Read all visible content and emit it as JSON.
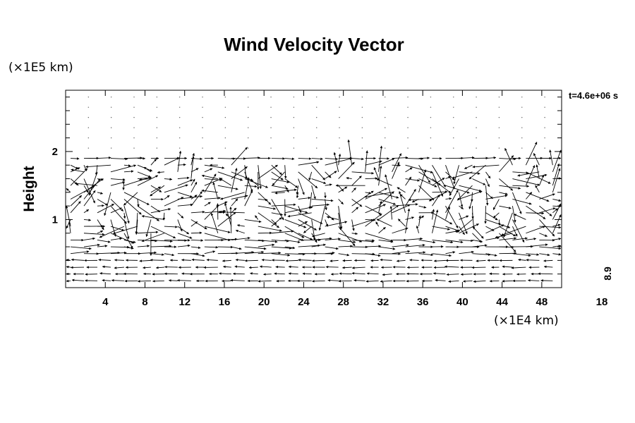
{
  "chart_data": {
    "type": "vector_field",
    "title": "Wind Velocity Vector",
    "ylabel": "Height",
    "y_unit": "(×1E5 km)",
    "x_unit": "(×1E4 km)",
    "time_label": "t=4.6e+06 s",
    "xlim": [
      0,
      50
    ],
    "ylim": [
      0,
      2.9
    ],
    "x_ticks": [
      4,
      8,
      12,
      16,
      20,
      24,
      28,
      32,
      36,
      40,
      44,
      48
    ],
    "y_ticks": [
      1,
      2
    ],
    "reference_vector_label": "18",
    "colorbar_label": "8.9",
    "vector_rows_y": [
      0.1,
      0.3,
      0.5,
      0.7,
      0.9,
      1.1,
      1.3,
      1.5,
      1.7,
      1.9,
      2.1,
      2.3,
      2.5,
      2.7
    ],
    "vector_cols_x": [
      0,
      2,
      4,
      6,
      8,
      10,
      12,
      14,
      16,
      18,
      20,
      22,
      24,
      26,
      28,
      30,
      32,
      34,
      36,
      38,
      40,
      42,
      44,
      46,
      48,
      50
    ]
  }
}
